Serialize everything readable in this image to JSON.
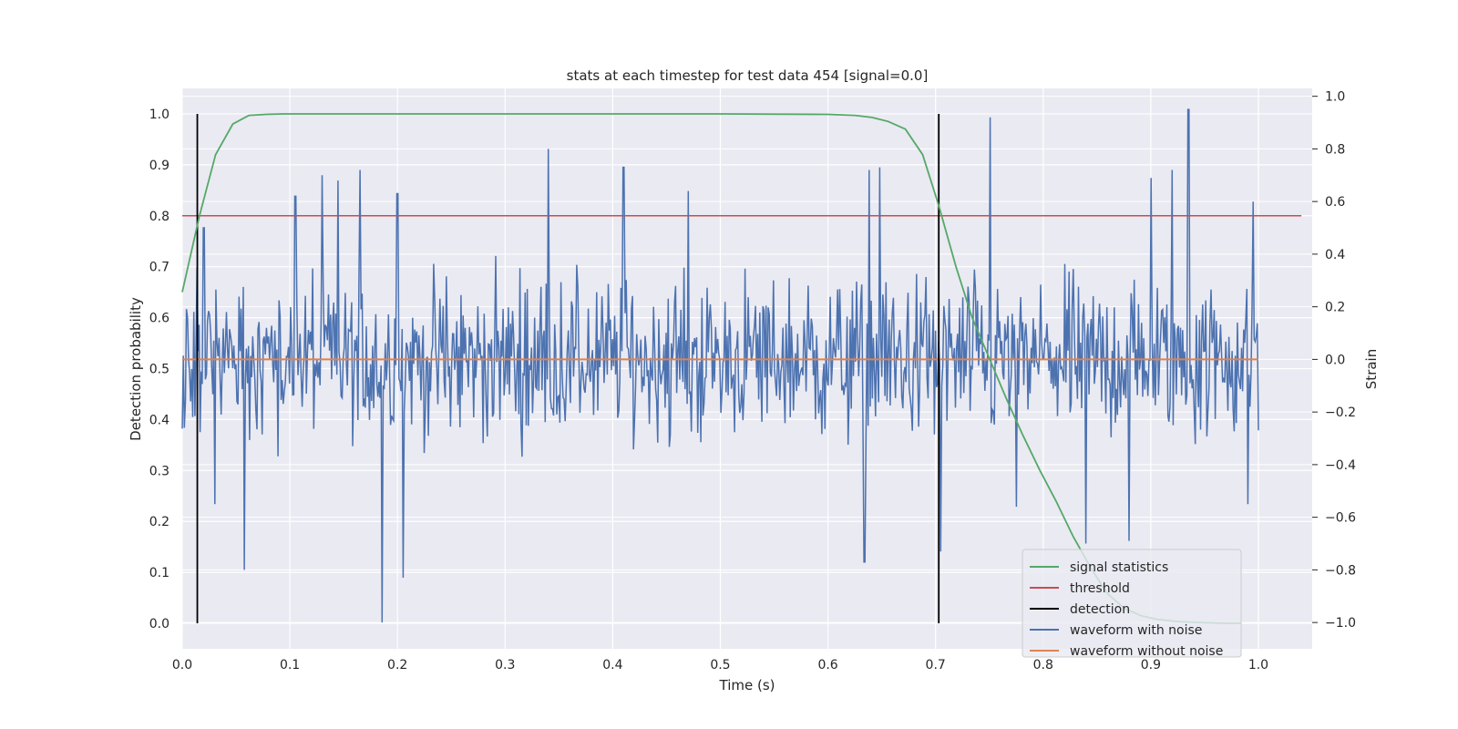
{
  "chart_data": {
    "type": "line",
    "title": "stats at each timestep for test data 454 [signal=0.0]",
    "xlabel": "Time (s)",
    "ylabel": "Detection probability",
    "y2label": "Strain",
    "xlim": [
      0.0,
      1.05
    ],
    "ylim": [
      -0.05,
      1.05
    ],
    "y2lim": [
      -1.1,
      1.03
    ],
    "xticks": [
      "0.0",
      "0.1",
      "0.2",
      "0.3",
      "0.4",
      "0.5",
      "0.6",
      "0.7",
      "0.8",
      "0.9",
      "1.0"
    ],
    "yticks": [
      "0.0",
      "0.1",
      "0.2",
      "0.3",
      "0.4",
      "0.5",
      "0.6",
      "0.7",
      "0.8",
      "0.9",
      "1.0"
    ],
    "y2ticks": [
      "−1.0",
      "−0.8",
      "−0.6",
      "−0.4",
      "−0.2",
      "0.0",
      "0.2",
      "0.4",
      "0.6",
      "0.8",
      "1.0"
    ],
    "grid": true,
    "legend_position": "lower-right",
    "series": [
      {
        "name": "signal statistics",
        "axis": "left",
        "color": "#55a868",
        "x": [
          0.0,
          0.016,
          0.031,
          0.047,
          0.062,
          0.078,
          0.094,
          0.11,
          0.2,
          0.3,
          0.4,
          0.5,
          0.6,
          0.625,
          0.641,
          0.656,
          0.672,
          0.688,
          0.703,
          0.719,
          0.734,
          0.75,
          0.766,
          0.781,
          0.797,
          0.812,
          0.828,
          0.844,
          0.859,
          0.875,
          0.891,
          0.906,
          0.922,
          0.938,
          0.953,
          0.969,
          0.984
        ],
        "values": [
          0.65,
          0.8,
          0.92,
          0.98,
          0.997,
          0.999,
          1.0,
          1.0,
          1.0,
          1.0,
          1.0,
          1.0,
          0.999,
          0.997,
          0.993,
          0.985,
          0.97,
          0.92,
          0.82,
          0.7,
          0.6,
          0.52,
          0.44,
          0.37,
          0.3,
          0.24,
          0.17,
          0.11,
          0.06,
          0.03,
          0.015,
          0.008,
          0.004,
          0.002,
          0.001,
          0.0,
          0.0
        ]
      },
      {
        "name": "threshold",
        "axis": "left",
        "color": "#c44e52",
        "x": [
          0.0,
          1.0
        ],
        "values": [
          0.8,
          0.8
        ]
      },
      {
        "name": "detection",
        "axis": "left",
        "color": "#000000",
        "x": [
          0.014,
          0.703
        ],
        "values": [
          1.0,
          1.0
        ]
      },
      {
        "name": "waveform with noise",
        "axis": "right",
        "color": "#4c72b0",
        "x_range": [
          0.0,
          1.0
        ],
        "sample_count": 1024,
        "spikes": [
          {
            "x": 0.014,
            "y": 0.35
          },
          {
            "x": 0.02,
            "y": 0.5
          },
          {
            "x": 0.03,
            "y": -0.55
          },
          {
            "x": 0.058,
            "y": -0.8
          },
          {
            "x": 0.105,
            "y": 0.62
          },
          {
            "x": 0.13,
            "y": 0.7
          },
          {
            "x": 0.145,
            "y": 0.68
          },
          {
            "x": 0.165,
            "y": 0.72
          },
          {
            "x": 0.186,
            "y": -1.0
          },
          {
            "x": 0.2,
            "y": 0.63
          },
          {
            "x": 0.205,
            "y": -0.83
          },
          {
            "x": 0.34,
            "y": 0.8
          },
          {
            "x": 0.41,
            "y": 0.73
          },
          {
            "x": 0.47,
            "y": 0.64
          },
          {
            "x": 0.634,
            "y": -0.77
          },
          {
            "x": 0.638,
            "y": 0.72
          },
          {
            "x": 0.648,
            "y": 0.73
          },
          {
            "x": 0.705,
            "y": -0.73
          },
          {
            "x": 0.751,
            "y": 0.92
          },
          {
            "x": 0.775,
            "y": -0.56
          },
          {
            "x": 0.84,
            "y": -0.7
          },
          {
            "x": 0.88,
            "y": -0.69
          },
          {
            "x": 0.9,
            "y": 0.69
          },
          {
            "x": 0.92,
            "y": 0.72
          },
          {
            "x": 0.935,
            "y": 0.95
          },
          {
            "x": 0.99,
            "y": -0.55
          },
          {
            "x": 0.995,
            "y": 0.6
          }
        ],
        "typical_amplitude": 0.25
      },
      {
        "name": "waveform without noise",
        "axis": "right",
        "color": "#dd8452",
        "x": [
          0.0,
          1.0
        ],
        "values": [
          0.0,
          0.0
        ]
      }
    ]
  }
}
